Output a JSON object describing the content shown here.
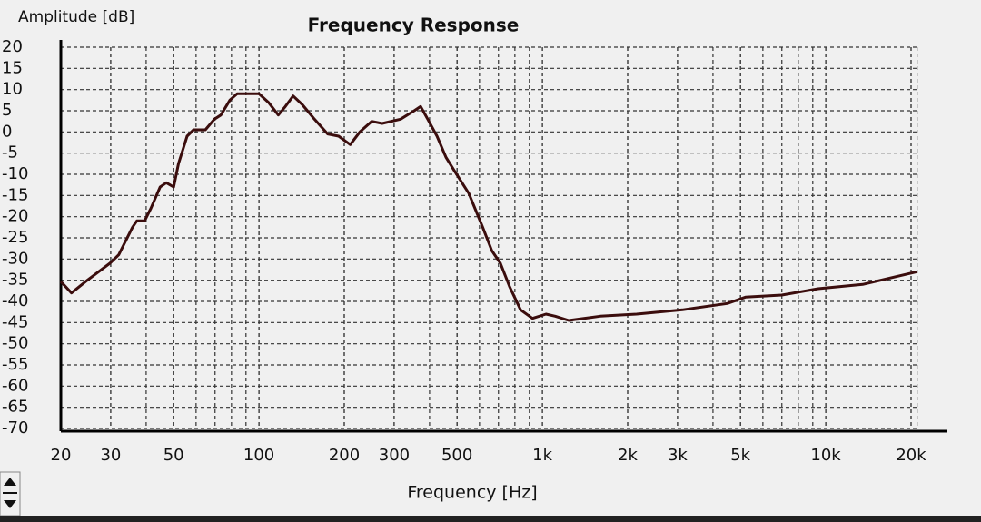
{
  "chart_data": {
    "type": "line",
    "title": "Frequency Response",
    "ylabel": "Amplitude [dB]",
    "xlabel": "Frequency [Hz]",
    "xscale": "log",
    "grid": true,
    "color": "#3b0d0d",
    "x": [
      20,
      21.8,
      24.8,
      29.8,
      32,
      35.8,
      37.1,
      39.5,
      41.6,
      44.8,
      47.1,
      50,
      52,
      55.8,
      58.8,
      64.7,
      69.6,
      73.4,
      79,
      83.8,
      90,
      100,
      108,
      117,
      124,
      132,
      142,
      157,
      175,
      191,
      210,
      227,
      250,
      272,
      316,
      353,
      372,
      394,
      425,
      457,
      493,
      550,
      616,
      663,
      711,
      766,
      838,
      923,
      1030,
      1110,
      1240,
      1600,
      2150,
      3120,
      4490,
      5210,
      7000,
      9400,
      13500,
      21000
    ],
    "values": [
      -35.3,
      -38,
      -35,
      -31,
      -29,
      -22.5,
      -21,
      -21,
      -18,
      -13,
      -12,
      -13,
      -7.5,
      -1,
      0.5,
      0.5,
      3,
      4,
      7.5,
      9,
      9,
      9,
      7,
      4,
      6,
      8.5,
      6.5,
      3,
      -0.5,
      -1,
      -3,
      0,
      2.5,
      2,
      3,
      5,
      6,
      3,
      -1,
      -6,
      -9.5,
      -14.5,
      -22.5,
      -28,
      -31,
      -36.5,
      -42,
      -44,
      -43,
      -43.5,
      -44.5,
      -43.5,
      -43,
      -42,
      -40.5,
      -39,
      -38.5,
      -37,
      -36,
      -33
    ],
    "xlim": [
      20,
      21000
    ],
    "xticks": [
      20,
      30,
      50,
      100,
      200,
      300,
      500,
      {
        "value": 1000,
        "label": "1k"
      },
      {
        "value": 2000,
        "label": "2k"
      },
      {
        "value": 3000,
        "label": "3k"
      },
      {
        "value": 5000,
        "label": "5k"
      },
      {
        "value": 10000,
        "label": "10k"
      },
      {
        "value": 20000,
        "label": "20k"
      }
    ],
    "ylim": [
      -70,
      20
    ],
    "yticks": [
      20,
      15,
      10,
      5,
      0,
      -5,
      -10,
      -15,
      -20,
      -25,
      -30,
      -35,
      -40,
      -45,
      -50,
      -55,
      -60,
      -65,
      -70
    ]
  }
}
